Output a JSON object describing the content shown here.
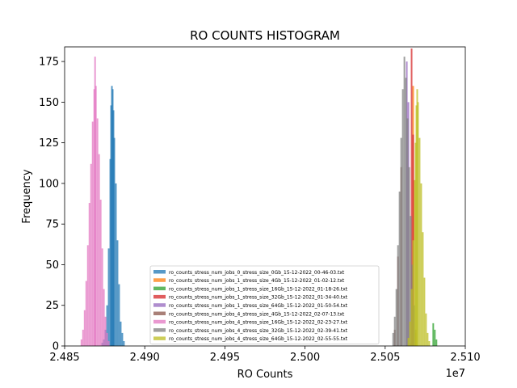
{
  "chart_data": {
    "type": "histogram",
    "title": "RO COUNTS HISTOGRAM",
    "xlabel": "RO Counts",
    "ylabel": "Frequency",
    "x_offset_label": "1e7",
    "xlim": [
      24850000,
      25100000
    ],
    "ylim": [
      0,
      184
    ],
    "x_ticks": [
      24850000,
      24900000,
      24950000,
      25000000,
      25050000,
      25100000
    ],
    "x_tick_labels": [
      "2.485",
      "2.490",
      "2.495",
      "2.500",
      "2.505",
      "2.510"
    ],
    "y_ticks": [
      0,
      25,
      50,
      75,
      100,
      125,
      150,
      175
    ],
    "y_tick_labels": [
      "0",
      "25",
      "50",
      "75",
      "100",
      "125",
      "150",
      "175"
    ],
    "grid": false,
    "legend_position": "lower-center",
    "series": [
      {
        "name": "ro_counts_stress_num_jobs_0_stress_size_0Gb_15-12-2022_00-46-03.txt",
        "color": "#1f77b4",
        "bins": [
          [
            24873500,
            2
          ],
          [
            24874500,
            4
          ],
          [
            24875500,
            10
          ],
          [
            24876500,
            25
          ],
          [
            24877500,
            60
          ],
          [
            24878500,
            115
          ],
          [
            24879000,
            148
          ],
          [
            24879500,
            160
          ],
          [
            24880000,
            158
          ],
          [
            24880500,
            145
          ],
          [
            24881000,
            128
          ],
          [
            24882000,
            100
          ],
          [
            24883000,
            65
          ],
          [
            24884000,
            38
          ],
          [
            24885000,
            15
          ],
          [
            24886000,
            8
          ],
          [
            24887000,
            3
          ]
        ]
      },
      {
        "name": "ro_counts_stress_num_jobs_1_stress_size_4Gb_15-12-2022_01-02-12.txt",
        "color": "#ff7f0e",
        "bins": [
          [
            25066000,
            2
          ],
          [
            25067500,
            160
          ],
          [
            25069000,
            8
          ]
        ]
      },
      {
        "name": "ro_counts_stress_num_jobs_1_stress_size_16Gb_15-12-2022_01-18-26.txt",
        "color": "#2ca02c",
        "bins": [
          [
            25080000,
            14
          ],
          [
            25081000,
            10
          ],
          [
            25082000,
            4
          ]
        ]
      },
      {
        "name": "ro_counts_stress_num_jobs_1_stress_size_32Gb_15-12-2022_01-34-40.txt",
        "color": "#d62728",
        "bins": [
          [
            25066500,
            183
          ],
          [
            25067500,
            130
          ]
        ]
      },
      {
        "name": "ro_counts_stress_num_jobs_1_stress_size_64Gb_15-12-2022_01-50-54.txt",
        "color": "#9467bd",
        "bins": [
          [
            25063500,
            175
          ],
          [
            25064500,
            150
          ]
        ]
      },
      {
        "name": "ro_counts_stress_num_jobs_4_stress_size_4Gb_15-12-2022_02-07-13.txt",
        "color": "#8c564b",
        "bins": [
          [
            25056000,
            10
          ],
          [
            25058000,
            55
          ],
          [
            25060000,
            110
          ]
        ]
      },
      {
        "name": "ro_counts_stress_num_jobs_4_stress_size_16Gb_15-12-2022_02-23-27.txt",
        "color": "#e377c2",
        "bins": [
          [
            24860500,
            4
          ],
          [
            24861500,
            10
          ],
          [
            24862500,
            22
          ],
          [
            24863500,
            40
          ],
          [
            24864500,
            62
          ],
          [
            24865500,
            88
          ],
          [
            24866500,
            112
          ],
          [
            24867500,
            138
          ],
          [
            24868500,
            158
          ],
          [
            24869000,
            178
          ],
          [
            24869500,
            160
          ],
          [
            24870500,
            140
          ],
          [
            24871500,
            118
          ],
          [
            24872500,
            90
          ],
          [
            24873500,
            60
          ],
          [
            24874500,
            35
          ],
          [
            24875500,
            18
          ],
          [
            24876500,
            8
          ],
          [
            24877500,
            3
          ]
        ]
      },
      {
        "name": "ro_counts_stress_num_jobs_4_stress_size_32Gb_15-12-2022_02-39-41.txt",
        "color": "#7f7f7f",
        "bins": [
          [
            25055000,
            8
          ],
          [
            25056000,
            18
          ],
          [
            25057000,
            35
          ],
          [
            25058000,
            62
          ],
          [
            25059000,
            95
          ],
          [
            25060000,
            128
          ],
          [
            25061000,
            158
          ],
          [
            25062000,
            178
          ],
          [
            25063000,
            165
          ],
          [
            25064000,
            140
          ],
          [
            25065000,
            110
          ],
          [
            25066000,
            80
          ],
          [
            25067000,
            50
          ],
          [
            25068000,
            25
          ],
          [
            25069000,
            10
          ]
        ]
      },
      {
        "name": "ro_counts_stress_num_jobs_4_stress_size_64Gb_15-12-2022_02-55-55.txt",
        "color": "#bcbd22",
        "bins": [
          [
            25064500,
            5
          ],
          [
            25065500,
            15
          ],
          [
            25066500,
            35
          ],
          [
            25067500,
            65
          ],
          [
            25068500,
            102
          ],
          [
            25069000,
            125
          ],
          [
            25069500,
            148
          ],
          [
            25070000,
            158
          ],
          [
            25070500,
            150
          ],
          [
            25071500,
            128
          ],
          [
            25072500,
            100
          ],
          [
            25073500,
            70
          ],
          [
            25074500,
            42
          ],
          [
            25075500,
            20
          ],
          [
            25076500,
            8
          ],
          [
            25077500,
            3
          ]
        ]
      }
    ]
  }
}
